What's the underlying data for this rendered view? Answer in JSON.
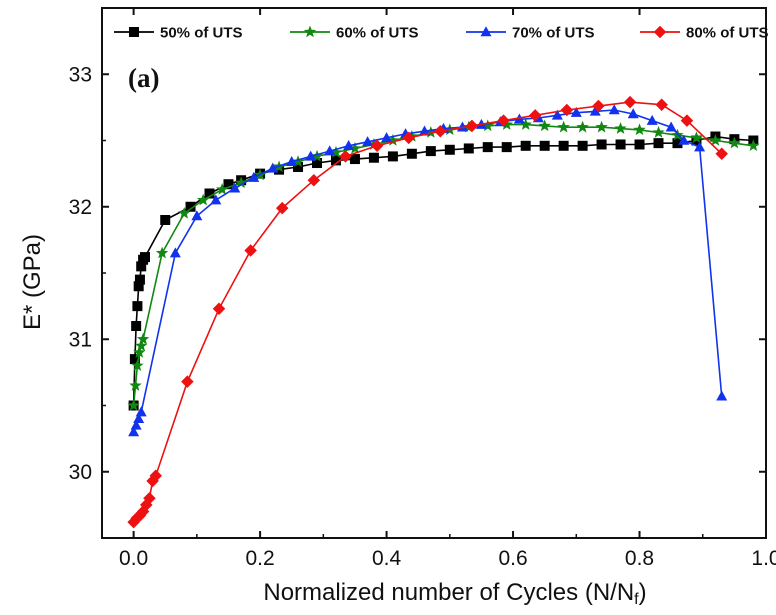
{
  "chart_data": {
    "type": "line",
    "panel_label": "(a)",
    "xlabel": "Normalized number of Cycles (N/N",
    "xlabel_sub": "f",
    "xlabel_close": ")",
    "ylabel": "E* (GPa)",
    "xlim": [
      -0.05,
      1.0
    ],
    "ylim": [
      29.5,
      33.5
    ],
    "x_ticks": [
      0.0,
      0.2,
      0.4,
      0.6,
      0.8,
      1.0
    ],
    "x_tick_labels": [
      "0.0",
      "0.2",
      "0.4",
      "0.6",
      "0.8",
      "1.0"
    ],
    "y_ticks": [
      30,
      31,
      32,
      33
    ],
    "y_tick_labels": [
      "30",
      "31",
      "32",
      "33"
    ],
    "grid": false,
    "legend_position": "top",
    "series": [
      {
        "name": "50% of UTS",
        "color": "#000000",
        "marker": "square",
        "x": [
          0.0,
          0.002,
          0.004,
          0.006,
          0.008,
          0.01,
          0.012,
          0.015,
          0.018,
          0.05,
          0.09,
          0.12,
          0.15,
          0.17,
          0.2,
          0.23,
          0.26,
          0.29,
          0.32,
          0.35,
          0.38,
          0.41,
          0.44,
          0.47,
          0.5,
          0.53,
          0.56,
          0.59,
          0.62,
          0.65,
          0.68,
          0.71,
          0.74,
          0.77,
          0.8,
          0.83,
          0.86,
          0.89,
          0.92,
          0.95,
          0.98
        ],
        "y": [
          30.5,
          30.85,
          31.1,
          31.25,
          31.4,
          31.45,
          31.55,
          31.6,
          31.62,
          31.9,
          32.0,
          32.1,
          32.17,
          32.2,
          32.25,
          32.28,
          32.3,
          32.33,
          32.35,
          32.36,
          32.37,
          32.38,
          32.4,
          32.42,
          32.43,
          32.44,
          32.45,
          32.45,
          32.46,
          32.46,
          32.46,
          32.46,
          32.47,
          32.47,
          32.47,
          32.48,
          32.48,
          32.5,
          32.53,
          32.51,
          32.5
        ]
      },
      {
        "name": "60% of UTS",
        "color": "#118811",
        "marker": "star",
        "x": [
          0.0,
          0.003,
          0.006,
          0.009,
          0.012,
          0.015,
          0.045,
          0.08,
          0.11,
          0.14,
          0.17,
          0.2,
          0.23,
          0.26,
          0.29,
          0.32,
          0.35,
          0.38,
          0.41,
          0.44,
          0.47,
          0.5,
          0.53,
          0.56,
          0.59,
          0.62,
          0.65,
          0.68,
          0.71,
          0.74,
          0.77,
          0.8,
          0.83,
          0.86,
          0.89,
          0.92,
          0.95,
          0.98
        ],
        "y": [
          30.5,
          30.65,
          30.8,
          30.9,
          30.95,
          31.0,
          31.65,
          31.95,
          32.05,
          32.13,
          32.18,
          32.24,
          32.3,
          32.34,
          32.38,
          32.41,
          32.44,
          32.47,
          32.5,
          32.53,
          32.56,
          32.58,
          32.6,
          32.61,
          32.62,
          32.62,
          32.61,
          32.6,
          32.6,
          32.6,
          32.59,
          32.58,
          32.56,
          32.54,
          32.52,
          32.5,
          32.48,
          32.46
        ]
      },
      {
        "name": "70% of UTS",
        "color": "#1133ee",
        "marker": "triangle",
        "x": [
          0.0,
          0.004,
          0.008,
          0.012,
          0.066,
          0.1,
          0.13,
          0.16,
          0.19,
          0.22,
          0.25,
          0.28,
          0.31,
          0.34,
          0.37,
          0.4,
          0.43,
          0.46,
          0.49,
          0.52,
          0.55,
          0.58,
          0.61,
          0.64,
          0.67,
          0.7,
          0.73,
          0.76,
          0.79,
          0.82,
          0.85,
          0.87,
          0.895,
          0.93
        ],
        "y": [
          30.3,
          30.35,
          30.4,
          30.45,
          31.65,
          31.93,
          32.05,
          32.14,
          32.22,
          32.29,
          32.34,
          32.38,
          32.42,
          32.46,
          32.49,
          32.52,
          32.55,
          32.57,
          32.59,
          32.6,
          32.62,
          32.64,
          32.66,
          32.67,
          32.69,
          32.71,
          32.72,
          32.73,
          32.7,
          32.65,
          32.6,
          32.5,
          32.45,
          30.57
        ]
      },
      {
        "name": "80% of UTS",
        "color": "#ee1111",
        "marker": "diamond",
        "x": [
          0.0,
          0.005,
          0.01,
          0.015,
          0.02,
          0.025,
          0.03,
          0.035,
          0.085,
          0.135,
          0.185,
          0.235,
          0.285,
          0.335,
          0.385,
          0.435,
          0.485,
          0.535,
          0.585,
          0.635,
          0.685,
          0.735,
          0.785,
          0.835,
          0.875,
          0.93
        ],
        "y": [
          29.62,
          29.65,
          29.67,
          29.7,
          29.75,
          29.8,
          29.93,
          29.97,
          30.68,
          31.23,
          31.67,
          31.99,
          32.2,
          32.38,
          32.46,
          32.52,
          32.57,
          32.61,
          32.65,
          32.69,
          32.73,
          32.76,
          32.79,
          32.77,
          32.65,
          32.4
        ]
      }
    ]
  }
}
